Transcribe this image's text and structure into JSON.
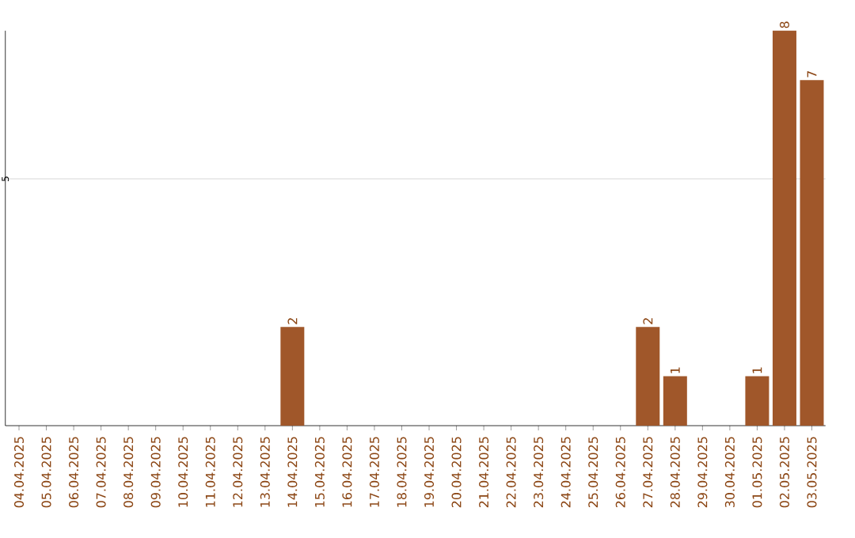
{
  "chart_data": {
    "type": "bar",
    "categories": [
      "04.04.2025",
      "05.04.2025",
      "06.04.2025",
      "07.04.2025",
      "08.04.2025",
      "09.04.2025",
      "10.04.2025",
      "11.04.2025",
      "12.04.2025",
      "13.04.2025",
      "14.04.2025",
      "15.04.2025",
      "16.04.2025",
      "17.04.2025",
      "18.04.2025",
      "19.04.2025",
      "20.04.2025",
      "21.04.2025",
      "22.04.2025",
      "23.04.2025",
      "24.04.2025",
      "25.04.2025",
      "26.04.2025",
      "27.04.2025",
      "28.04.2025",
      "29.04.2025",
      "30.04.2025",
      "01.05.2025",
      "02.05.2025",
      "03.05.2025"
    ],
    "values": [
      0,
      0,
      0,
      0,
      0,
      0,
      0,
      0,
      0,
      0,
      2,
      0,
      0,
      0,
      0,
      0,
      0,
      0,
      0,
      0,
      0,
      0,
      0,
      2,
      1,
      0,
      0,
      1,
      8,
      7
    ],
    "value_labels": [
      null,
      null,
      null,
      null,
      null,
      null,
      null,
      null,
      null,
      null,
      "2",
      null,
      null,
      null,
      null,
      null,
      null,
      null,
      null,
      null,
      null,
      null,
      null,
      "2",
      "1",
      null,
      null,
      "1",
      "8",
      "7"
    ],
    "color": "#a0572a",
    "ylim": [
      0,
      8
    ],
    "yticks": [
      5
    ],
    "grid": "y"
  }
}
